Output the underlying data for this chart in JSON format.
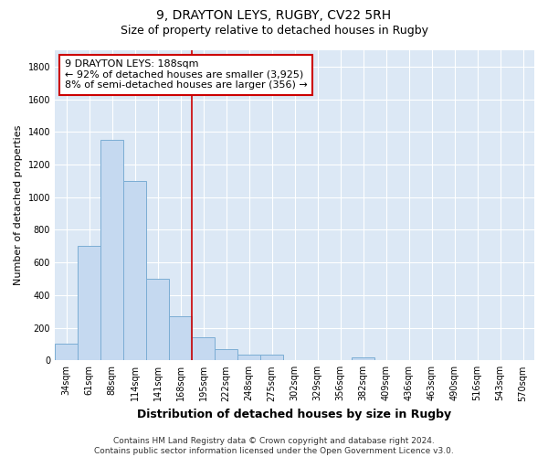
{
  "title1": "9, DRAYTON LEYS, RUGBY, CV22 5RH",
  "title2": "Size of property relative to detached houses in Rugby",
  "xlabel": "Distribution of detached houses by size in Rugby",
  "ylabel": "Number of detached properties",
  "categories": [
    "34sqm",
    "61sqm",
    "88sqm",
    "114sqm",
    "141sqm",
    "168sqm",
    "195sqm",
    "222sqm",
    "248sqm",
    "275sqm",
    "302sqm",
    "329sqm",
    "356sqm",
    "382sqm",
    "409sqm",
    "436sqm",
    "463sqm",
    "490sqm",
    "516sqm",
    "543sqm",
    "570sqm"
  ],
  "values": [
    100,
    700,
    1350,
    1100,
    500,
    270,
    140,
    70,
    35,
    35,
    0,
    0,
    0,
    20,
    0,
    0,
    0,
    0,
    0,
    0,
    0
  ],
  "bar_color": "#c5d9f0",
  "bar_edge_color": "#7badd4",
  "vline_color": "#cc0000",
  "vline_x_index": 6,
  "ylim": [
    0,
    1900
  ],
  "yticks": [
    0,
    200,
    400,
    600,
    800,
    1000,
    1200,
    1400,
    1600,
    1800
  ],
  "annotation_text": "9 DRAYTON LEYS: 188sqm\n← 92% of detached houses are smaller (3,925)\n8% of semi-detached houses are larger (356) →",
  "annotation_box_color": "#ffffff",
  "annotation_box_edge": "#cc0000",
  "footer": "Contains HM Land Registry data © Crown copyright and database right 2024.\nContains public sector information licensed under the Open Government Licence v3.0.",
  "background_color": "#dce8f5",
  "grid_color": "#ffffff",
  "title1_fontsize": 10,
  "title2_fontsize": 9,
  "xlabel_fontsize": 9,
  "ylabel_fontsize": 8,
  "tick_fontsize": 7,
  "annotation_fontsize": 8,
  "footer_fontsize": 6.5
}
